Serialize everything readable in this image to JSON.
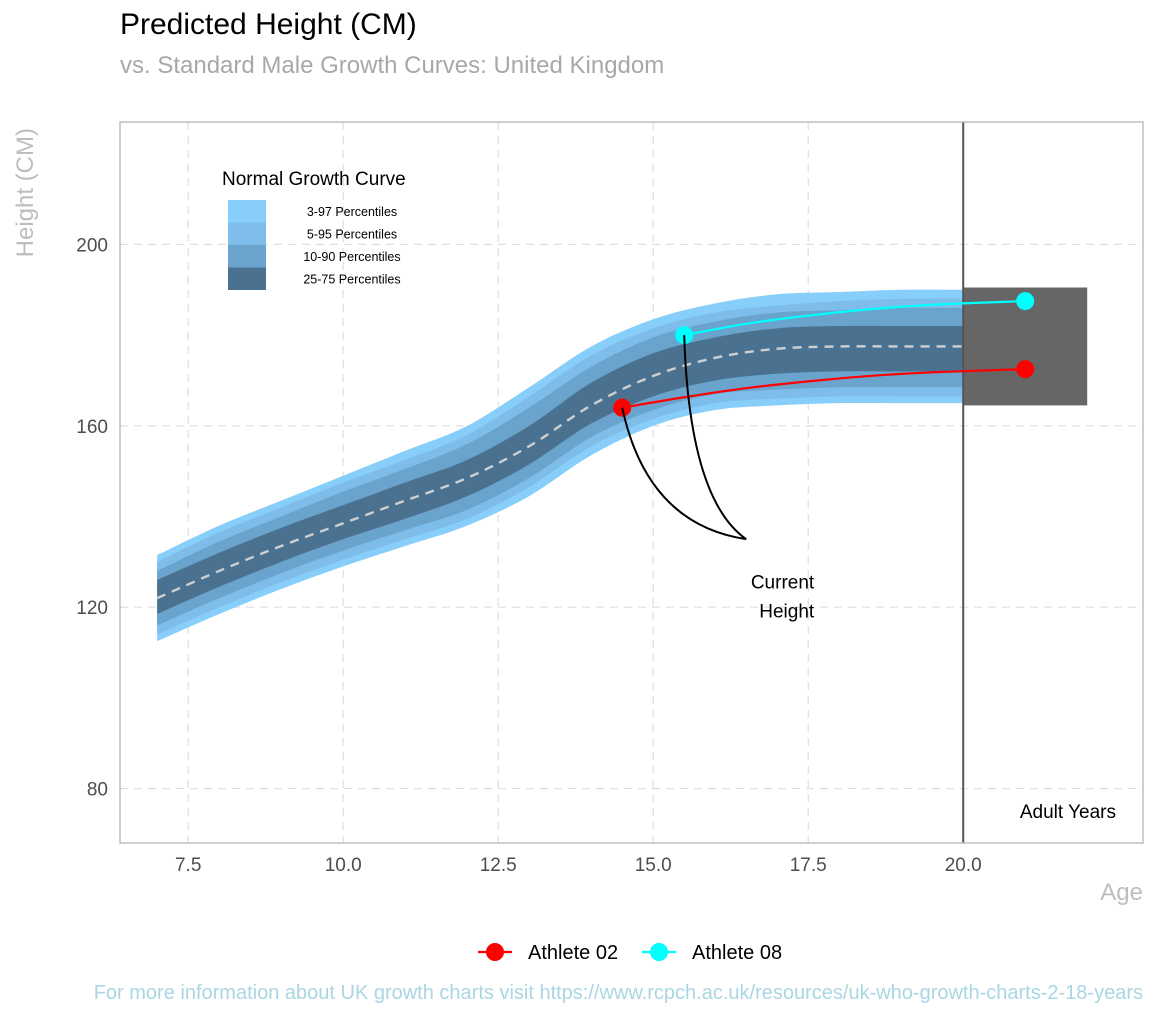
{
  "chart_data": {
    "type": "line",
    "title": "Predicted Height (CM)",
    "subtitle": "vs. Standard Male Growth Curves: United Kingdom",
    "xlabel": "Age",
    "ylabel": "Height (CM)",
    "xlim": [
      6.4,
      22.9
    ],
    "ylim": [
      68,
      227
    ],
    "x_ticks": [
      7.5,
      10.0,
      12.5,
      15.0,
      17.5,
      20.0
    ],
    "x_tick_labels": [
      "7.5",
      "10.0",
      "12.5",
      "15.0",
      "17.5",
      "20.0"
    ],
    "y_ticks": [
      80,
      120,
      160,
      200
    ],
    "y_tick_labels": [
      "80",
      "120",
      "160",
      "200"
    ],
    "grid": true,
    "growth_curve": {
      "age": [
        7,
        8,
        9,
        10,
        11,
        12,
        13,
        14,
        15,
        16,
        17,
        18,
        19,
        20
      ],
      "p3": [
        112.5,
        118.5,
        124.0,
        129.0,
        133.5,
        138.0,
        144.5,
        153.5,
        160.0,
        163.5,
        164.5,
        165.0,
        165.0,
        165.0
      ],
      "p5": [
        114.0,
        120.0,
        125.5,
        130.5,
        135.0,
        139.5,
        146.5,
        155.5,
        161.5,
        165.0,
        166.0,
        166.5,
        166.5,
        166.5
      ],
      "p10": [
        116.0,
        122.0,
        127.5,
        132.5,
        137.0,
        141.5,
        148.5,
        157.5,
        163.5,
        167.0,
        168.0,
        168.5,
        168.5,
        168.5
      ],
      "p25": [
        118.5,
        124.5,
        130.0,
        135.0,
        139.5,
        144.5,
        151.5,
        160.5,
        166.5,
        170.0,
        171.5,
        172.0,
        172.0,
        172.0
      ],
      "p50": [
        122.0,
        128.0,
        133.5,
        138.5,
        143.5,
        148.5,
        155.5,
        164.5,
        171.0,
        175.0,
        177.0,
        177.5,
        177.5,
        177.5
      ],
      "p75": [
        126.0,
        132.0,
        137.5,
        142.5,
        147.5,
        152.5,
        160.0,
        169.5,
        176.0,
        179.5,
        181.5,
        182.0,
        182.0,
        182.0
      ],
      "p90": [
        128.0,
        134.5,
        140.0,
        145.5,
        150.5,
        156.0,
        164.0,
        173.0,
        179.5,
        183.0,
        185.0,
        185.5,
        186.0,
        186.0
      ],
      "p95": [
        130.0,
        136.5,
        142.0,
        147.5,
        152.5,
        158.0,
        166.5,
        175.5,
        181.5,
        185.0,
        186.5,
        187.5,
        188.0,
        188.0
      ],
      "p97": [
        131.5,
        138.0,
        143.5,
        149.0,
        154.5,
        160.0,
        168.5,
        177.5,
        183.5,
        187.0,
        189.0,
        189.5,
        190.0,
        190.0
      ]
    },
    "band_legend": {
      "title": "Normal Growth Curve",
      "entries": [
        {
          "label": "3-97 Percentiles",
          "color": "#87cefa"
        },
        {
          "label": "5-95 Percentiles",
          "color": "#7ebde9"
        },
        {
          "label": "10-90 Percentiles",
          "color": "#6aa3cc"
        },
        {
          "label": "25-75 Percentiles",
          "color": "#4a7290"
        }
      ]
    },
    "series": [
      {
        "name": "Athlete 02",
        "color": "#ff0000",
        "current": {
          "x": 14.5,
          "y": 164.0
        },
        "predicted": {
          "x": 21.0,
          "y": 172.5
        },
        "path": [
          [
            14.5,
            164.0
          ],
          [
            15.5,
            166.3
          ],
          [
            16.5,
            168.3
          ],
          [
            17.5,
            169.8
          ],
          [
            18.5,
            171.0
          ],
          [
            19.5,
            171.8
          ],
          [
            21.0,
            172.5
          ]
        ]
      },
      {
        "name": "Athlete 08",
        "color": "#00ffff",
        "current": {
          "x": 15.5,
          "y": 180.0
        },
        "predicted": {
          "x": 21.0,
          "y": 187.5
        },
        "path": [
          [
            15.5,
            180.0
          ],
          [
            16.5,
            182.5
          ],
          [
            17.5,
            184.3
          ],
          [
            18.5,
            185.7
          ],
          [
            19.5,
            186.7
          ],
          [
            21.0,
            187.5
          ]
        ]
      }
    ],
    "adult_years": {
      "label": "Adult Years",
      "x_start": 20.0,
      "x_end": 22.0,
      "y_min": 164.5,
      "y_max": 190.5,
      "color": "#666666"
    },
    "annotation": {
      "label_line1": "Current",
      "label_line2": "Height",
      "anchor": {
        "x": 16.5,
        "y": 135.0
      },
      "text_anchor": {
        "x": 16.5,
        "y": 125.5
      }
    },
    "vline": {
      "x": 20.0,
      "color": "#555555"
    },
    "legend_position": "bottom",
    "caption": "For more information about UK growth charts visit https://www.rcpch.ac.uk/resources/uk-who-growth-charts-2-18-years"
  }
}
